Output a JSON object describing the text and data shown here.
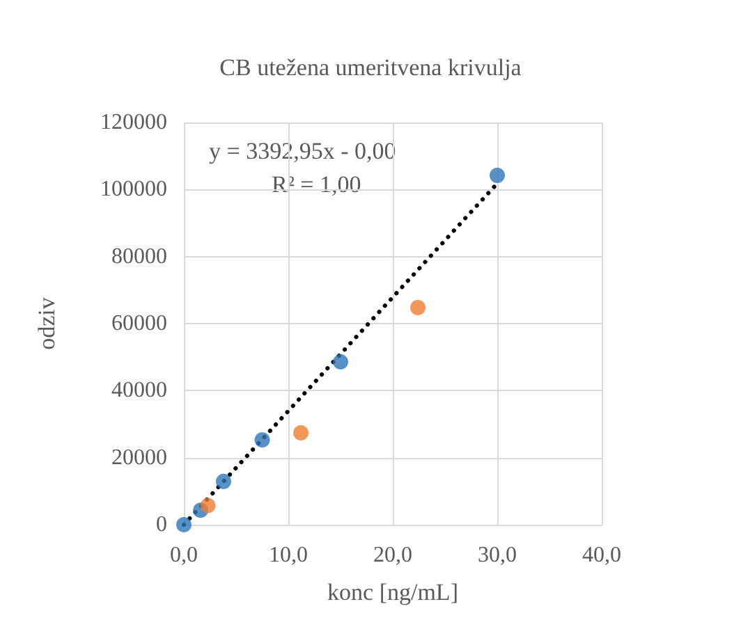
{
  "chart_data": {
    "type": "scatter",
    "title": "CB utežena umeritvena krivulja",
    "xlabel": "konc [ng/mL]",
    "ylabel": "odziv",
    "xlim": [
      0,
      40
    ],
    "xticks": [
      {
        "value": 0,
        "label": "0,0"
      },
      {
        "value": 10,
        "label": "10,0"
      },
      {
        "value": 20,
        "label": "20,0"
      },
      {
        "value": 30,
        "label": "30,0"
      },
      {
        "value": 40,
        "label": "40,0"
      }
    ],
    "ylim": [
      0,
      120000
    ],
    "yticks": [
      0,
      20000,
      40000,
      60000,
      80000,
      100000,
      120000
    ],
    "grid": true,
    "marker": "circle",
    "annotations": [
      "y = 3392,95x - 0,00",
      "R² = 1,00"
    ],
    "series": [
      {
        "color": "#2e75b6",
        "x": [
          0,
          1.6,
          3.8,
          7.5,
          15,
          30
        ],
        "values": [
          0,
          4300,
          12900,
          25300,
          48600,
          104200
        ]
      },
      {
        "color": "#ed7d31",
        "x": [
          2.3,
          11.2,
          22.4
        ],
        "values": [
          5700,
          27400,
          64800
        ]
      },
      {
        "type": "line",
        "color": "#000000",
        "line_style": "dotted",
        "marker": "none",
        "x": [
          0,
          30
        ],
        "values": [
          0,
          101800
        ]
      }
    ]
  }
}
